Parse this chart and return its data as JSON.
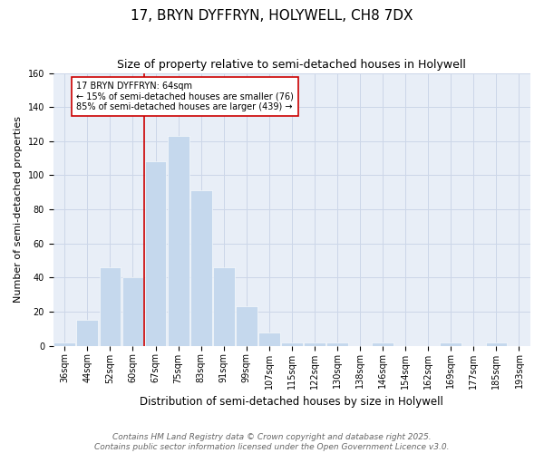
{
  "title": "17, BRYN DYFFRYN, HOLYWELL, CH8 7DX",
  "subtitle": "Size of property relative to semi-detached houses in Holywell",
  "xlabel": "Distribution of semi-detached houses by size in Holywell",
  "ylabel": "Number of semi-detached properties",
  "bin_labels": [
    "36sqm",
    "44sqm",
    "52sqm",
    "60sqm",
    "67sqm",
    "75sqm",
    "83sqm",
    "91sqm",
    "99sqm",
    "107sqm",
    "115sqm",
    "122sqm",
    "130sqm",
    "138sqm",
    "146sqm",
    "154sqm",
    "162sqm",
    "169sqm",
    "177sqm",
    "185sqm",
    "193sqm"
  ],
  "counts": [
    2,
    15,
    46,
    40,
    108,
    123,
    91,
    46,
    23,
    8,
    2,
    2,
    2,
    0,
    2,
    0,
    0,
    2,
    0,
    2,
    0
  ],
  "bar_color": "#c5d8ed",
  "grid_color": "#ccd6e8",
  "bg_color": "#e8eef7",
  "vline_bin": 3,
  "annotation_text": "17 BRYN DYFFRYN: 64sqm\n← 15% of semi-detached houses are smaller (76)\n85% of semi-detached houses are larger (439) →",
  "annotation_box_color": "#ffffff",
  "annotation_box_edge": "#cc0000",
  "vline_color": "#cc0000",
  "ylim": [
    0,
    160
  ],
  "yticks": [
    0,
    20,
    40,
    60,
    80,
    100,
    120,
    140,
    160
  ],
  "footer_text": "Contains HM Land Registry data © Crown copyright and database right 2025.\nContains public sector information licensed under the Open Government Licence v3.0.",
  "title_fontsize": 11,
  "subtitle_fontsize": 9,
  "xlabel_fontsize": 8.5,
  "ylabel_fontsize": 8,
  "tick_fontsize": 7,
  "annotation_fontsize": 7,
  "footer_fontsize": 6.5
}
